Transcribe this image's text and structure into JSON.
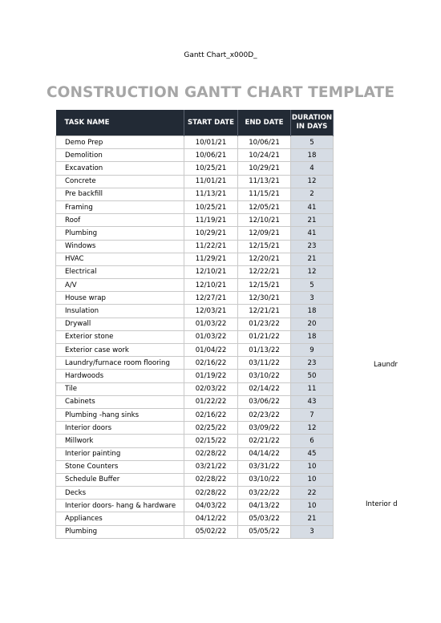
{
  "header": {
    "text": "Gantt Chart_x000D_"
  },
  "title": "CONSTRUCTION GANTT CHART TEMPLATE",
  "columns": [
    "TASK NAME",
    "START DATE",
    "END DATE",
    "DURATION IN DAYS"
  ],
  "rows": [
    {
      "task": "Demo Prep",
      "start": "10/01/21",
      "end": "10/06/21",
      "duration": "5"
    },
    {
      "task": "Demolition",
      "start": "10/06/21",
      "end": "10/24/21",
      "duration": "18"
    },
    {
      "task": "Excavation",
      "start": "10/25/21",
      "end": "10/29/21",
      "duration": "4"
    },
    {
      "task": "Concrete",
      "start": "11/01/21",
      "end": "11/13/21",
      "duration": "12"
    },
    {
      "task": "Pre backfill",
      "start": "11/13/21",
      "end": "11/15/21",
      "duration": "2"
    },
    {
      "task": "Framing",
      "start": "10/25/21",
      "end": "12/05/21",
      "duration": "41"
    },
    {
      "task": "Roof",
      "start": "11/19/21",
      "end": "12/10/21",
      "duration": "21"
    },
    {
      "task": "Plumbing",
      "start": "10/29/21",
      "end": "12/09/21",
      "duration": "41"
    },
    {
      "task": "Windows",
      "start": "11/22/21",
      "end": "12/15/21",
      "duration": "23"
    },
    {
      "task": "HVAC",
      "start": "11/29/21",
      "end": "12/20/21",
      "duration": "21"
    },
    {
      "task": "Electrical",
      "start": "12/10/21",
      "end": "12/22/21",
      "duration": "12"
    },
    {
      "task": "A/V",
      "start": "12/10/21",
      "end": "12/15/21",
      "duration": "5"
    },
    {
      "task": "House wrap",
      "start": "12/27/21",
      "end": "12/30/21",
      "duration": "3"
    },
    {
      "task": "Insulation",
      "start": "12/03/21",
      "end": "12/21/21",
      "duration": "18"
    },
    {
      "task": "Drywall",
      "start": "01/03/22",
      "end": "01/23/22",
      "duration": "20"
    },
    {
      "task": "Exterior stone",
      "start": "01/03/22",
      "end": "01/21/22",
      "duration": "18"
    },
    {
      "task": "Exterior case work",
      "start": "01/04/22",
      "end": "01/13/22",
      "duration": "9"
    },
    {
      "task": "Laundry/furnace room flooring",
      "start": "02/16/22",
      "end": "03/11/22",
      "duration": "23"
    },
    {
      "task": "Hardwoods",
      "start": "01/19/22",
      "end": "03/10/22",
      "duration": "50"
    },
    {
      "task": "Tile",
      "start": "02/03/22",
      "end": "02/14/22",
      "duration": "11"
    },
    {
      "task": "Cabinets",
      "start": "01/22/22",
      "end": "03/06/22",
      "duration": "43"
    },
    {
      "task": "Plumbing -hang sinks",
      "start": "02/16/22",
      "end": "02/23/22",
      "duration": "7"
    },
    {
      "task": "Interior doors",
      "start": "02/25/22",
      "end": "03/09/22",
      "duration": "12"
    },
    {
      "task": "Millwork",
      "start": "02/15/22",
      "end": "02/21/22",
      "duration": "6"
    },
    {
      "task": "Interior painting",
      "start": "02/28/22",
      "end": "04/14/22",
      "duration": "45"
    },
    {
      "task": "Stone Counters",
      "start": "03/21/22",
      "end": "03/31/22",
      "duration": "10"
    },
    {
      "task": "Schedule Buffer",
      "start": "02/28/22",
      "end": "03/10/22",
      "duration": "10"
    },
    {
      "task": "Decks",
      "start": "02/28/22",
      "end": "03/22/22",
      "duration": "22"
    },
    {
      "task": "Interior doors- hang & hardware",
      "start": "04/03/22",
      "end": "04/13/22",
      "duration": "10"
    },
    {
      "task": "Appliances",
      "start": "04/12/22",
      "end": "05/03/22",
      "duration": "21"
    },
    {
      "task": "Plumbing",
      "start": "05/02/22",
      "end": "05/05/22",
      "duration": "3"
    }
  ],
  "side_notes": [
    "Laundr",
    "Interior d"
  ],
  "colors": {
    "header_bg": "#222a35",
    "duration_bg": "#d6dce4",
    "title": "#a6a6a6"
  }
}
